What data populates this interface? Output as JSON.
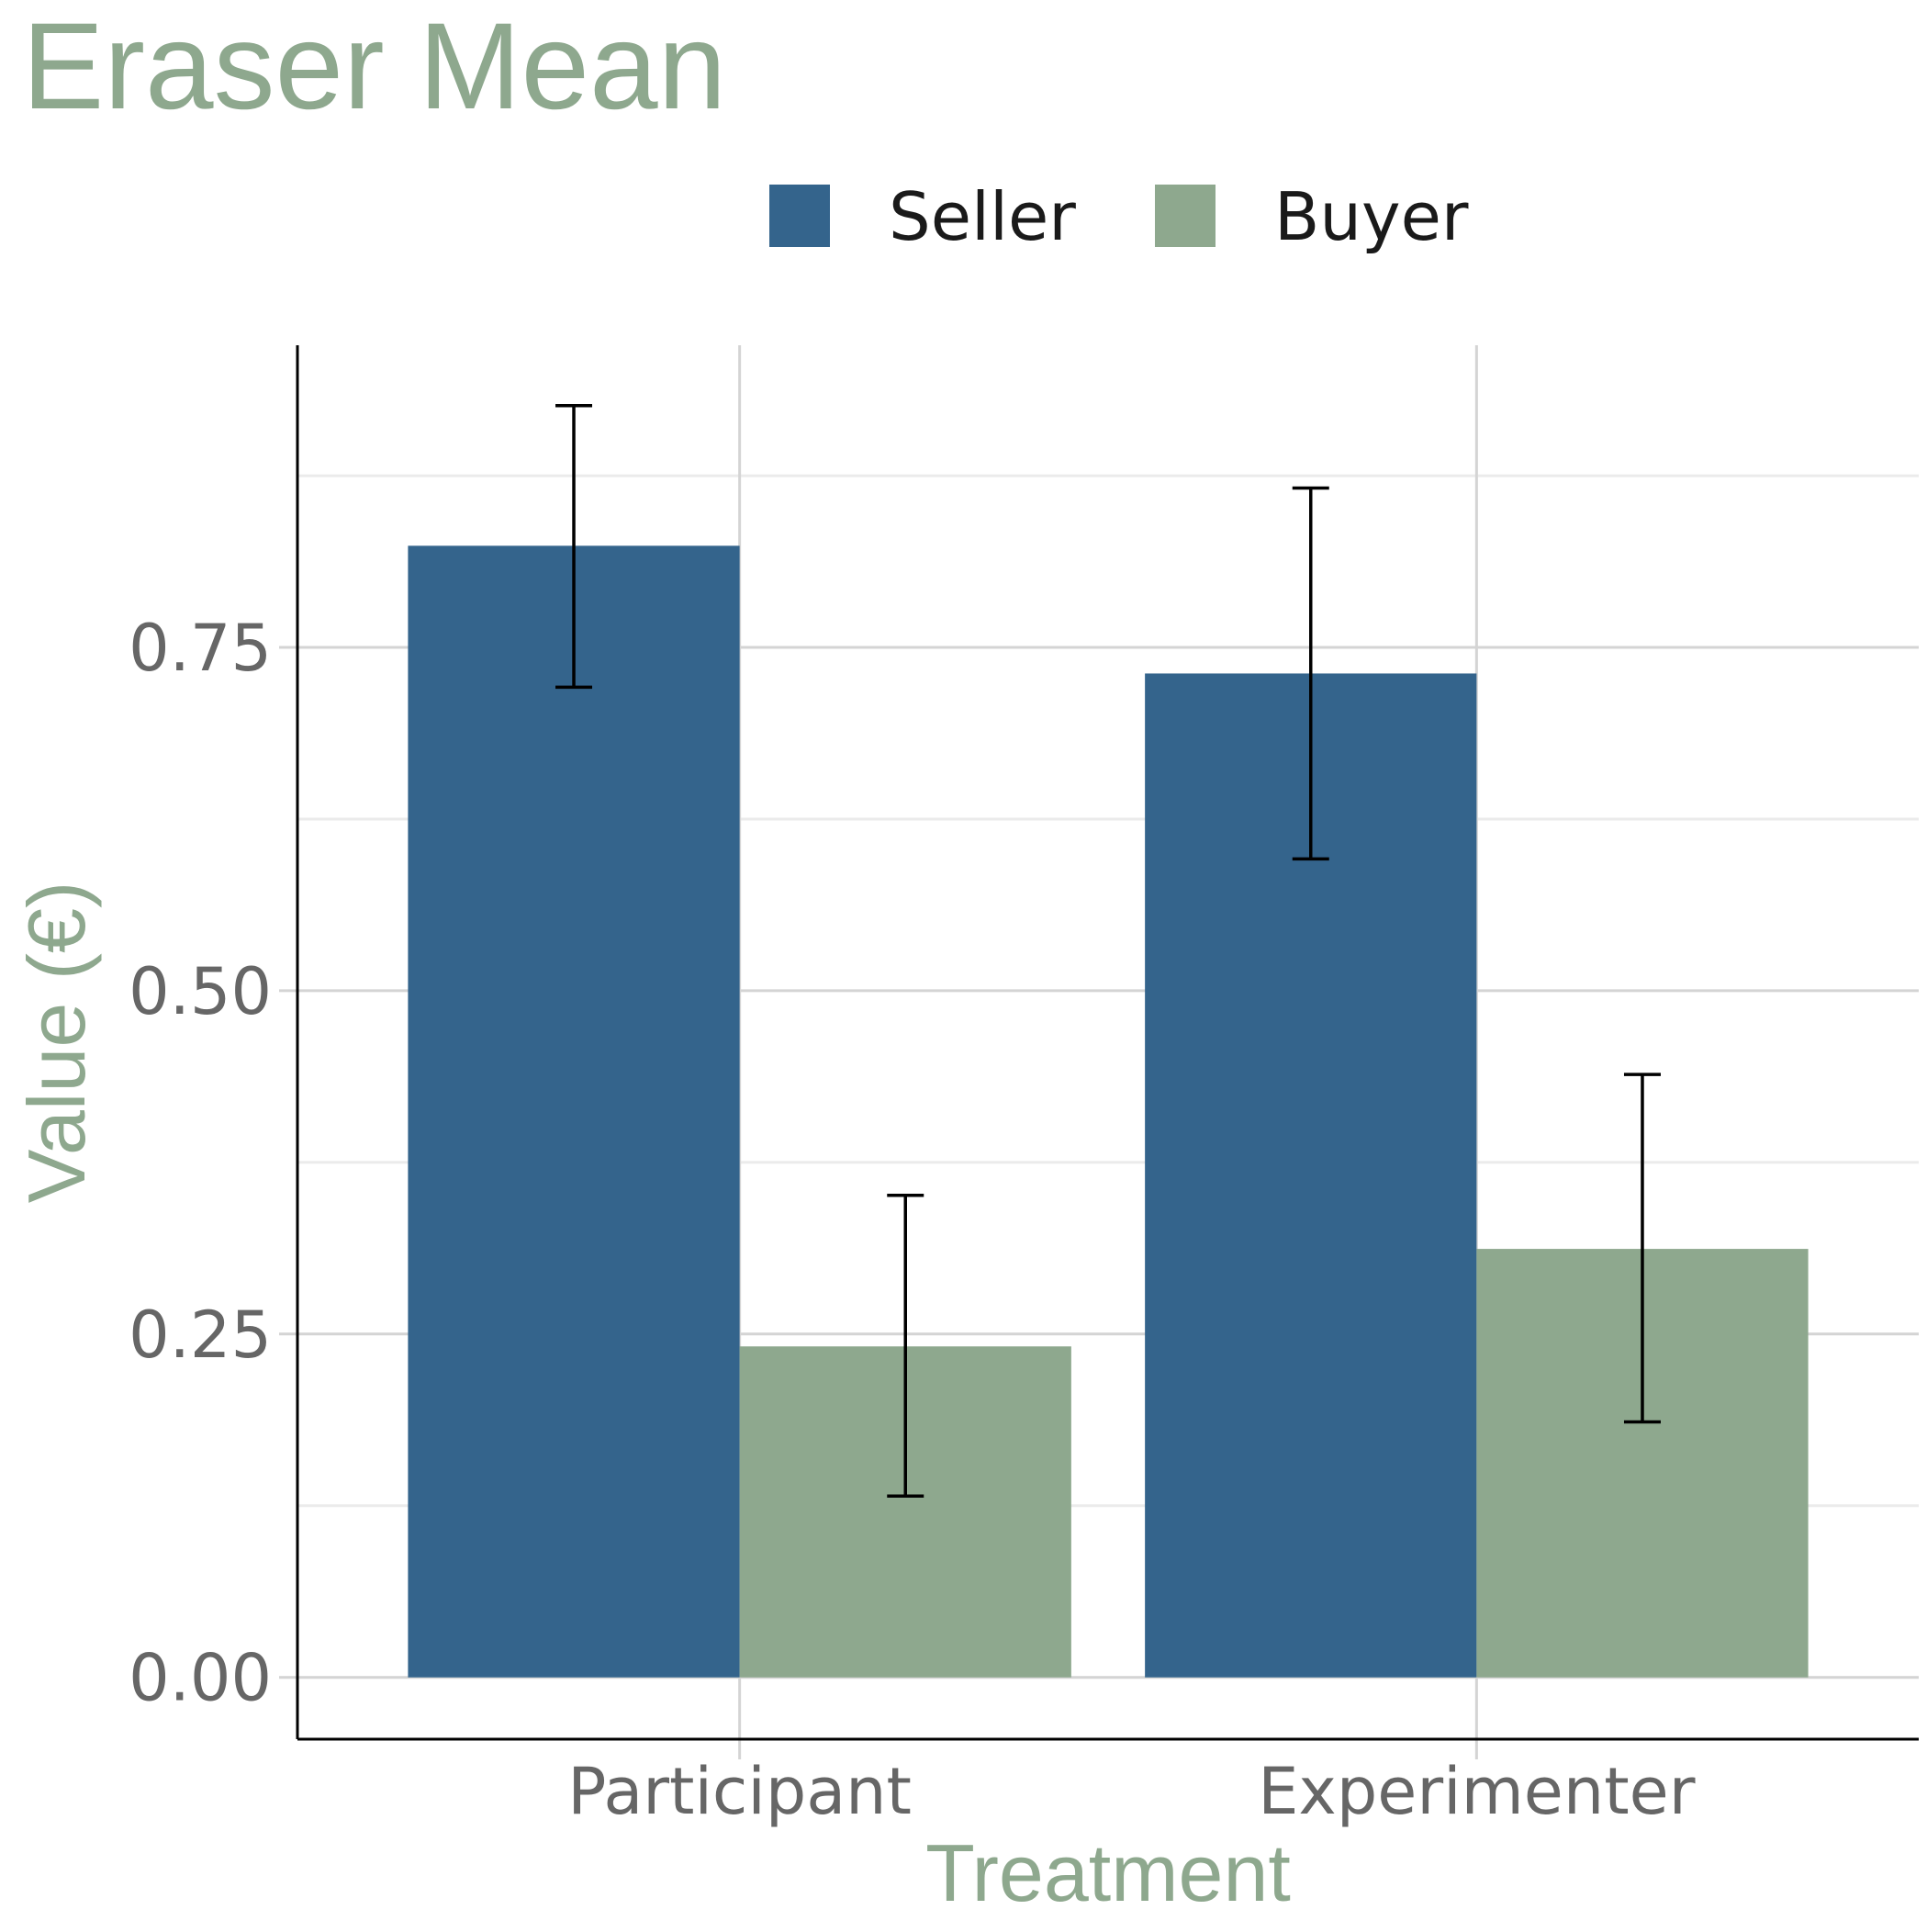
{
  "chart_data": {
    "type": "bar",
    "title": "Eraser Mean",
    "xlabel": "Treatment",
    "ylabel": "Value (€)",
    "categories": [
      "Participant",
      "Experimenter"
    ],
    "series": [
      {
        "name": "Seller",
        "color": "#34648c",
        "values": [
          0.824,
          0.731
        ],
        "error_low": [
          0.721,
          0.596
        ],
        "error_high": [
          0.926,
          0.866
        ]
      },
      {
        "name": "Buyer",
        "color": "#8ea88e",
        "values": [
          0.241,
          0.312
        ],
        "error_low": [
          0.132,
          0.186
        ],
        "error_high": [
          0.351,
          0.439
        ]
      }
    ],
    "ylim": [
      -0.045,
      0.97
    ],
    "yticks": [
      "0.00",
      "0.25",
      "0.50",
      "0.75"
    ],
    "grid": true,
    "legend": "top"
  }
}
